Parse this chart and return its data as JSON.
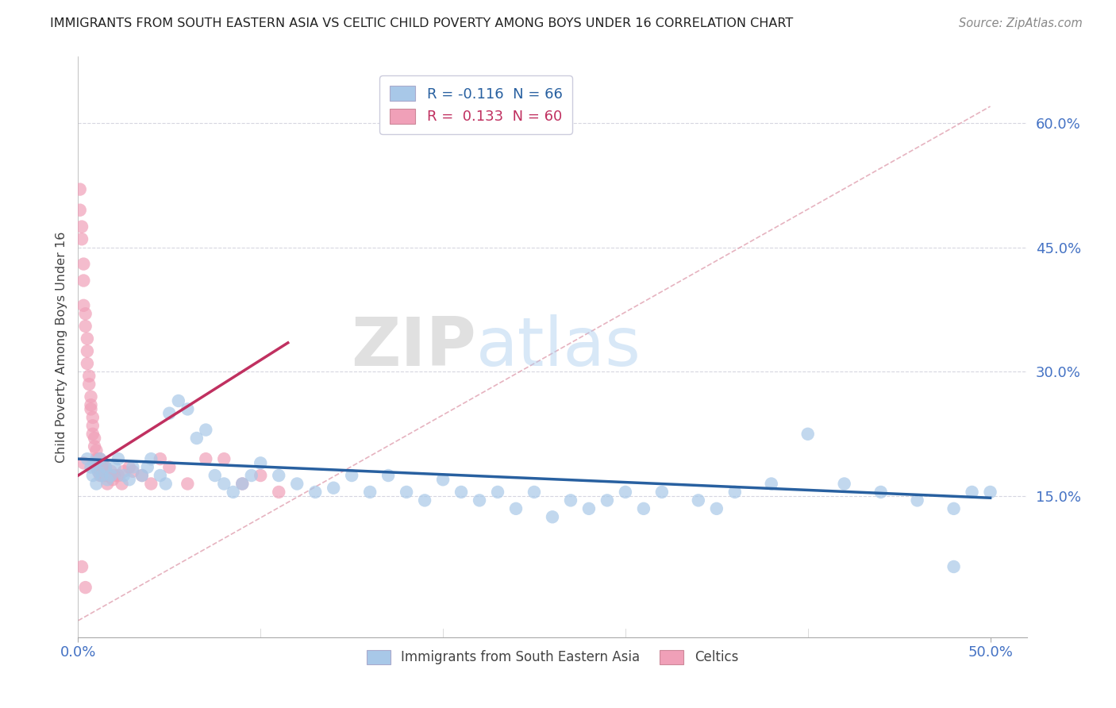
{
  "title": "IMMIGRANTS FROM SOUTH EASTERN ASIA VS CELTIC CHILD POVERTY AMONG BOYS UNDER 16 CORRELATION CHART",
  "source": "Source: ZipAtlas.com",
  "ylabel": "Child Poverty Among Boys Under 16",
  "xlim": [
    0.0,
    0.52
  ],
  "ylim": [
    -0.02,
    0.68
  ],
  "yticks": [
    0.15,
    0.3,
    0.45,
    0.6
  ],
  "ytick_labels": [
    "15.0%",
    "30.0%",
    "45.0%",
    "60.0%"
  ],
  "xtick_left": "0.0%",
  "xtick_right": "50.0%",
  "blue_color": "#A8C8E8",
  "pink_color": "#F0A0B8",
  "trend_blue": "#2860A0",
  "trend_pink": "#C03060",
  "ref_line_color": "#E0A0B0",
  "watermark_zip": "ZIP",
  "watermark_atlas": "atlas",
  "background_color": "#FFFFFF",
  "blue_scatter_x": [
    0.005,
    0.007,
    0.008,
    0.009,
    0.01,
    0.011,
    0.012,
    0.013,
    0.015,
    0.016,
    0.018,
    0.02,
    0.022,
    0.025,
    0.028,
    0.03,
    0.035,
    0.038,
    0.04,
    0.045,
    0.048,
    0.05,
    0.055,
    0.06,
    0.065,
    0.07,
    0.075,
    0.08,
    0.085,
    0.09,
    0.095,
    0.1,
    0.11,
    0.12,
    0.13,
    0.14,
    0.15,
    0.16,
    0.17,
    0.18,
    0.19,
    0.2,
    0.21,
    0.22,
    0.23,
    0.24,
    0.25,
    0.26,
    0.27,
    0.28,
    0.29,
    0.3,
    0.31,
    0.32,
    0.34,
    0.35,
    0.36,
    0.38,
    0.4,
    0.42,
    0.44,
    0.46,
    0.48,
    0.49,
    0.5,
    0.48
  ],
  "blue_scatter_y": [
    0.195,
    0.185,
    0.175,
    0.19,
    0.165,
    0.18,
    0.195,
    0.175,
    0.185,
    0.17,
    0.175,
    0.185,
    0.195,
    0.175,
    0.17,
    0.185,
    0.175,
    0.185,
    0.195,
    0.175,
    0.165,
    0.25,
    0.265,
    0.255,
    0.22,
    0.23,
    0.175,
    0.165,
    0.155,
    0.165,
    0.175,
    0.19,
    0.175,
    0.165,
    0.155,
    0.16,
    0.175,
    0.155,
    0.175,
    0.155,
    0.145,
    0.17,
    0.155,
    0.145,
    0.155,
    0.135,
    0.155,
    0.125,
    0.145,
    0.135,
    0.145,
    0.155,
    0.135,
    0.155,
    0.145,
    0.135,
    0.155,
    0.165,
    0.225,
    0.165,
    0.155,
    0.145,
    0.135,
    0.155,
    0.155,
    0.065
  ],
  "pink_scatter_x": [
    0.001,
    0.001,
    0.002,
    0.002,
    0.003,
    0.003,
    0.003,
    0.004,
    0.004,
    0.005,
    0.005,
    0.005,
    0.006,
    0.006,
    0.007,
    0.007,
    0.007,
    0.008,
    0.008,
    0.008,
    0.009,
    0.009,
    0.01,
    0.01,
    0.01,
    0.011,
    0.011,
    0.012,
    0.012,
    0.012,
    0.013,
    0.013,
    0.014,
    0.014,
    0.015,
    0.015,
    0.016,
    0.016,
    0.017,
    0.018,
    0.019,
    0.02,
    0.022,
    0.024,
    0.025,
    0.028,
    0.03,
    0.035,
    0.04,
    0.05,
    0.06,
    0.07,
    0.08,
    0.09,
    0.1,
    0.11,
    0.045,
    0.003,
    0.002,
    0.004
  ],
  "pink_scatter_y": [
    0.52,
    0.495,
    0.475,
    0.46,
    0.43,
    0.41,
    0.38,
    0.37,
    0.355,
    0.34,
    0.325,
    0.31,
    0.295,
    0.285,
    0.27,
    0.26,
    0.255,
    0.245,
    0.235,
    0.225,
    0.22,
    0.21,
    0.205,
    0.195,
    0.185,
    0.18,
    0.195,
    0.185,
    0.175,
    0.195,
    0.175,
    0.185,
    0.175,
    0.185,
    0.175,
    0.185,
    0.175,
    0.165,
    0.175,
    0.18,
    0.17,
    0.175,
    0.175,
    0.165,
    0.18,
    0.185,
    0.18,
    0.175,
    0.165,
    0.185,
    0.165,
    0.195,
    0.195,
    0.165,
    0.175,
    0.155,
    0.195,
    0.19,
    0.065,
    0.04
  ],
  "blue_trend_x": [
    0.0,
    0.5
  ],
  "blue_trend_y": [
    0.195,
    0.148
  ],
  "pink_trend_x": [
    0.0,
    0.115
  ],
  "pink_trend_y": [
    0.175,
    0.335
  ],
  "ref_line_x": [
    0.0,
    0.5
  ],
  "ref_line_y": [
    0.0,
    0.62
  ]
}
